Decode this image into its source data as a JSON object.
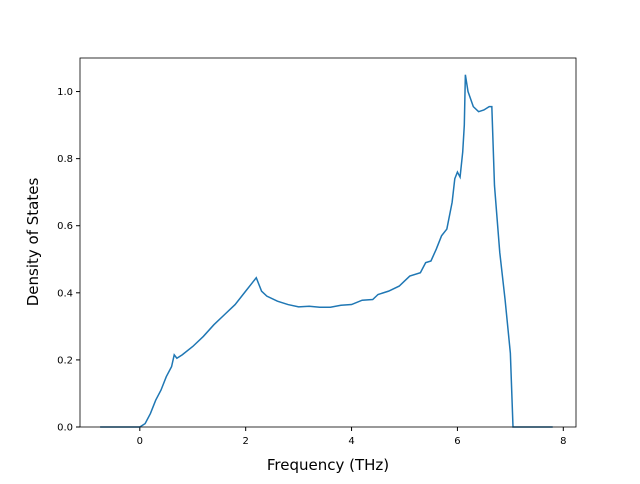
{
  "chart_data": {
    "type": "line",
    "xlabel": "Frequency (THz)",
    "ylabel": "Density of States",
    "x": [
      -0.75,
      0,
      0.1,
      0.2,
      0.3,
      0.4,
      0.5,
      0.6,
      0.65,
      0.7,
      0.8,
      1.0,
      1.2,
      1.4,
      1.6,
      1.8,
      2.0,
      2.1,
      2.2,
      2.3,
      2.4,
      2.6,
      2.8,
      3.0,
      3.2,
      3.4,
      3.6,
      3.8,
      4.0,
      4.2,
      4.4,
      4.5,
      4.7,
      4.9,
      5.0,
      5.1,
      5.3,
      5.4,
      5.5,
      5.6,
      5.7,
      5.8,
      5.9,
      5.95,
      6.0,
      6.05,
      6.1,
      6.13,
      6.15,
      6.2,
      6.3,
      6.4,
      6.5,
      6.6,
      6.65,
      6.7,
      6.8,
      6.9,
      7.0,
      7.05,
      7.8
    ],
    "series": [
      {
        "color": "#1f77b4",
        "values": [
          0,
          0,
          0.01,
          0.04,
          0.08,
          0.11,
          0.15,
          0.18,
          0.215,
          0.205,
          0.215,
          0.24,
          0.27,
          0.305,
          0.335,
          0.365,
          0.405,
          0.425,
          0.445,
          0.405,
          0.39,
          0.375,
          0.365,
          0.358,
          0.36,
          0.357,
          0.357,
          0.363,
          0.365,
          0.378,
          0.38,
          0.395,
          0.405,
          0.42,
          0.435,
          0.45,
          0.46,
          0.49,
          0.495,
          0.53,
          0.57,
          0.59,
          0.67,
          0.74,
          0.76,
          0.745,
          0.82,
          0.9,
          1.05,
          1.0,
          0.955,
          0.94,
          0.945,
          0.955,
          0.955,
          0.72,
          0.52,
          0.38,
          0.22,
          0,
          0
        ]
      }
    ],
    "xlim": [
      -1.13,
      8.24
    ],
    "ylim": [
      0,
      1.1
    ],
    "xticks": [
      0,
      2,
      4,
      6,
      8
    ],
    "yticks": [
      {
        "value": 0,
        "label": "0.0"
      },
      0.2,
      0.4,
      0.6,
      0.8,
      {
        "value": 1,
        "label": "1.0"
      }
    ]
  }
}
